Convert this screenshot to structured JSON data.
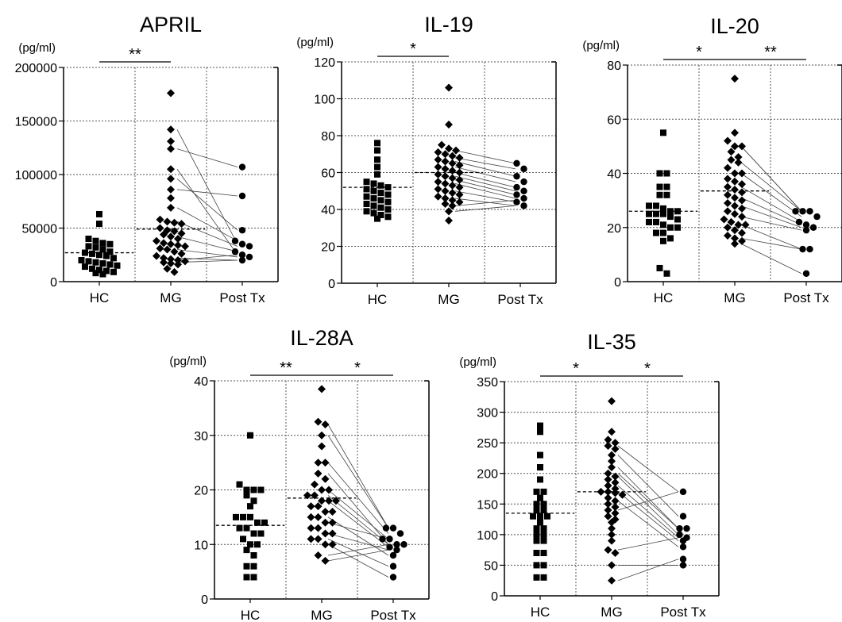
{
  "chart_data": [
    {
      "type": "scatter",
      "title": "APRIL",
      "unit": "(pg/ml)",
      "categories": [
        "HC",
        "MG",
        "Post Tx"
      ],
      "ylim": [
        0,
        200000
      ],
      "yticks": [
        0,
        50000,
        100000,
        150000,
        200000
      ],
      "ytick_labels": [
        "0",
        "50000",
        "100000",
        "150000",
        "200000"
      ],
      "grid": true,
      "means": [
        27000,
        49000
      ],
      "significance": [
        {
          "from": "HC",
          "to": "MG",
          "label": "**"
        }
      ],
      "groups": [
        {
          "name": "HC",
          "values": [
            63000,
            54000,
            40000,
            38000,
            36000,
            35000,
            33000,
            32000,
            30000,
            28000,
            27000,
            26000,
            25000,
            24000,
            22000,
            20000,
            19000,
            18000,
            17000,
            16000,
            15000,
            14000,
            12000,
            11000,
            10000,
            9000,
            8000,
            7000
          ]
        },
        {
          "name": "MG",
          "values": [
            176000,
            142000,
            131000,
            124000,
            105000,
            96000,
            86000,
            78000,
            69000,
            58000,
            56000,
            55000,
            54000,
            50000,
            48000,
            47000,
            45000,
            44000,
            42000,
            40000,
            38000,
            36000,
            35000,
            34000,
            33000,
            31000,
            30000,
            28000,
            26000,
            24000,
            22000,
            21000,
            20000,
            19000,
            18000,
            17000,
            16000,
            12000,
            9000
          ]
        },
        {
          "name": "Post Tx",
          "values": [
            107000,
            80000,
            48000,
            38000,
            35000,
            33000,
            28000,
            25000,
            23000,
            20000
          ]
        }
      ],
      "pairs": [
        [
          124000,
          107000
        ],
        [
          142000,
          35000
        ],
        [
          86000,
          80000
        ],
        [
          96000,
          48000
        ],
        [
          105000,
          25000
        ],
        [
          69000,
          38000
        ],
        [
          56000,
          33000
        ],
        [
          42000,
          28000
        ],
        [
          30000,
          23000
        ],
        [
          22000,
          20000
        ],
        [
          20000,
          25000
        ],
        [
          18000,
          20000
        ]
      ]
    },
    {
      "type": "scatter",
      "title": "IL-19",
      "unit": "(pg/ml)",
      "categories": [
        "HC",
        "MG",
        "Post Tx"
      ],
      "ylim": [
        0,
        120
      ],
      "yticks": [
        0,
        20,
        40,
        60,
        80,
        100,
        120
      ],
      "ytick_labels": [
        "0",
        "20",
        "40",
        "60",
        "80",
        "100",
        "120"
      ],
      "grid": true,
      "means": [
        52,
        60
      ],
      "significance": [
        {
          "from": "HC",
          "to": "MG",
          "label": "*"
        }
      ],
      "groups": [
        {
          "name": "HC",
          "values": [
            76,
            72,
            67,
            63,
            59,
            55,
            54,
            53,
            52,
            51,
            50,
            49,
            48,
            47,
            46,
            45,
            44,
            43,
            42,
            41,
            40,
            39,
            38,
            37,
            36,
            35
          ]
        },
        {
          "name": "MG",
          "values": [
            106,
            86,
            75,
            73,
            72,
            71,
            70,
            69,
            68,
            67,
            66,
            65,
            64,
            63,
            62,
            61,
            60,
            59,
            58,
            57,
            56,
            55,
            54,
            53,
            52,
            51,
            50,
            49,
            48,
            47,
            46,
            45,
            44,
            43,
            42,
            39,
            34
          ]
        },
        {
          "name": "Post Tx",
          "values": [
            65,
            62,
            58,
            55,
            52,
            50,
            48,
            46,
            44,
            42
          ]
        }
      ],
      "pairs": [
        [
          72,
          65
        ],
        [
          68,
          62
        ],
        [
          66,
          58
        ],
        [
          63,
          55
        ],
        [
          60,
          52
        ],
        [
          58,
          50
        ],
        [
          56,
          48
        ],
        [
          54,
          46
        ],
        [
          50,
          44
        ],
        [
          46,
          42
        ],
        [
          42,
          45
        ],
        [
          39,
          42
        ]
      ]
    },
    {
      "type": "scatter",
      "title": "IL-20",
      "unit": "(pg/ml)",
      "categories": [
        "HC",
        "MG",
        "Post Tx"
      ],
      "ylim": [
        0,
        80
      ],
      "yticks": [
        0,
        20,
        40,
        60,
        80
      ],
      "ytick_labels": [
        "0",
        "20",
        "40",
        "60",
        "80"
      ],
      "grid": true,
      "means": [
        26,
        33.5
      ],
      "significance": [
        {
          "from": "HC",
          "to": "MG",
          "label": "*"
        },
        {
          "from": "MG",
          "to": "Post Tx",
          "label": "**"
        }
      ],
      "groups": [
        {
          "name": "HC",
          "values": [
            55,
            40,
            40,
            35,
            35,
            32,
            32,
            28,
            28,
            27,
            26,
            26,
            25,
            25,
            25,
            24,
            23,
            22,
            22,
            21,
            20,
            20,
            18,
            18,
            16,
            15,
            5,
            3
          ]
        },
        {
          "name": "MG",
          "values": [
            75,
            55,
            52,
            50,
            50,
            48,
            46,
            45,
            44,
            42,
            40,
            40,
            38,
            37,
            36,
            35,
            34,
            33,
            32,
            31,
            30,
            29,
            28,
            27,
            26,
            25,
            24,
            23,
            22,
            21,
            21,
            20,
            19,
            18,
            17,
            16,
            15,
            14
          ]
        },
        {
          "name": "Post Tx",
          "values": [
            26,
            26,
            26,
            24,
            22,
            21,
            20,
            19,
            12,
            12,
            3
          ]
        }
      ],
      "pairs": [
        [
          50,
          26
        ],
        [
          50,
          26
        ],
        [
          44,
          26
        ],
        [
          40,
          24
        ],
        [
          35,
          22
        ],
        [
          31,
          21
        ],
        [
          28,
          20
        ],
        [
          24,
          19
        ],
        [
          21,
          12
        ],
        [
          16,
          12
        ],
        [
          14,
          3
        ]
      ]
    },
    {
      "type": "scatter",
      "title": "IL-28A",
      "unit": "(pg/ml)",
      "categories": [
        "HC",
        "MG",
        "Post Tx"
      ],
      "ylim": [
        0,
        40
      ],
      "yticks": [
        0,
        10,
        20,
        30,
        40
      ],
      "ytick_labels": [
        "0",
        "10",
        "20",
        "30",
        "40"
      ],
      "grid": true,
      "means": [
        13.5,
        18.5
      ],
      "significance": [
        {
          "from": "HC",
          "to": "MG",
          "label": "**"
        },
        {
          "from": "MG",
          "to": "Post Tx",
          "label": "*"
        }
      ],
      "groups": [
        {
          "name": "HC",
          "values": [
            30,
            21,
            20,
            20,
            20,
            19,
            18,
            17,
            15,
            15,
            15,
            14,
            14,
            13,
            13,
            12,
            12,
            11,
            10,
            10,
            9,
            8,
            6,
            6,
            4,
            4
          ]
        },
        {
          "name": "MG",
          "values": [
            38.5,
            32.5,
            32,
            30,
            28,
            25,
            25,
            23,
            22,
            21,
            20,
            20,
            19,
            19,
            18,
            18,
            18,
            17,
            17,
            16,
            16,
            15,
            15,
            14,
            14,
            13,
            13,
            12,
            12,
            11,
            11,
            10,
            10,
            8,
            7
          ]
        },
        {
          "name": "Post Tx",
          "values": [
            13,
            13,
            12,
            11,
            11,
            10,
            10,
            9.5,
            9,
            8,
            6,
            4
          ]
        }
      ],
      "pairs": [
        [
          32,
          13
        ],
        [
          30,
          13
        ],
        [
          25,
          12
        ],
        [
          23,
          10
        ],
        [
          20,
          11
        ],
        [
          18,
          9.5
        ],
        [
          19,
          10
        ],
        [
          15,
          8
        ],
        [
          14,
          11
        ],
        [
          12,
          9
        ],
        [
          11,
          6
        ],
        [
          10,
          4
        ],
        [
          8,
          10
        ],
        [
          7,
          9
        ]
      ]
    },
    {
      "type": "scatter",
      "title": "IL-35",
      "unit": "(pg/ml)",
      "categories": [
        "HC",
        "MG",
        "Post Tx"
      ],
      "ylim": [
        0,
        350
      ],
      "yticks": [
        0,
        50,
        100,
        150,
        200,
        250,
        300,
        350
      ],
      "ytick_labels": [
        "0",
        "50",
        "100",
        "150",
        "200",
        "250",
        "300",
        "350"
      ],
      "grid": true,
      "means": [
        135,
        170
      ],
      "significance": [
        {
          "from": "HC",
          "to": "MG",
          "label": "*"
        },
        {
          "from": "MG",
          "to": "Post Tx",
          "label": "*"
        }
      ],
      "groups": [
        {
          "name": "HC",
          "values": [
            278,
            268,
            230,
            210,
            190,
            170,
            170,
            160,
            150,
            150,
            140,
            140,
            130,
            130,
            130,
            120,
            110,
            110,
            100,
            100,
            90,
            90,
            70,
            70,
            50,
            50,
            30,
            30
          ]
        },
        {
          "name": "MG",
          "values": [
            318,
            268,
            255,
            250,
            245,
            240,
            230,
            220,
            210,
            200,
            195,
            190,
            185,
            180,
            175,
            170,
            170,
            168,
            165,
            160,
            155,
            150,
            145,
            140,
            135,
            130,
            125,
            120,
            110,
            100,
            90,
            75,
            70,
            50,
            25
          ]
        },
        {
          "name": "Post Tx",
          "values": [
            170,
            130,
            110,
            110,
            100,
            95,
            90,
            80,
            60,
            50
          ]
        }
      ],
      "pairs": [
        [
          245,
          170
        ],
        [
          230,
          130
        ],
        [
          210,
          110
        ],
        [
          200,
          110
        ],
        [
          195,
          100
        ],
        [
          180,
          95
        ],
        [
          170,
          90
        ],
        [
          155,
          80
        ],
        [
          140,
          170
        ],
        [
          75,
          95
        ],
        [
          50,
          50
        ],
        [
          25,
          60
        ]
      ]
    }
  ]
}
